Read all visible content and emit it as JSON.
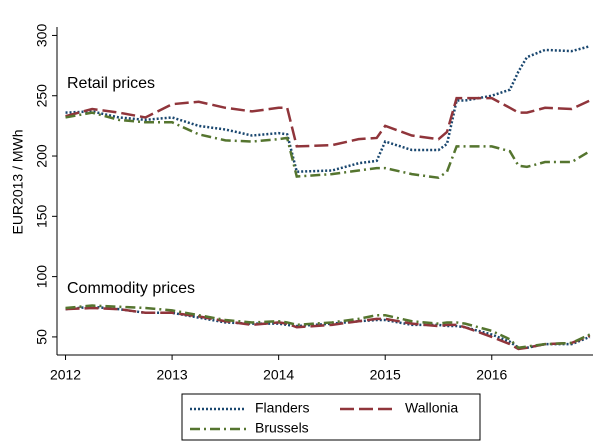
{
  "chart_data": {
    "type": "line",
    "ylabel": "EUR2013 / MWh",
    "annotations": [
      "Retail prices",
      "Commodity prices"
    ],
    "x": [
      2012,
      2012.25,
      2012.5,
      2012.75,
      2013,
      2013.25,
      2013.5,
      2013.75,
      2014.0,
      2014.08,
      2014.17,
      2014.5,
      2014.75,
      2014.92,
      2015.0,
      2015.25,
      2015.5,
      2015.58,
      2015.67,
      2015.75,
      2016,
      2016.17,
      2016.25,
      2016.33,
      2016.5,
      2016.75,
      2016.92
    ],
    "xlim": [
      2011.92,
      2016.95
    ],
    "xticks": [
      2012,
      2013,
      2014,
      2015,
      2016
    ],
    "ylim": [
      35,
      307
    ],
    "yticks": [
      50,
      100,
      150,
      200,
      250,
      300
    ],
    "grid": false,
    "series": [
      {
        "name": "Flanders",
        "color": "#1a476f",
        "dash": "2 2",
        "values": [
          236,
          237,
          232,
          230,
          232,
          225,
          222,
          217,
          219,
          218,
          187,
          188,
          194,
          196,
          212,
          205,
          205,
          210,
          246,
          246,
          250,
          255,
          270,
          282,
          288,
          287,
          291
        ],
        "commodity": [
          73,
          75,
          73,
          70,
          70,
          66,
          62,
          61,
          61,
          60,
          59,
          61,
          63,
          64,
          64,
          60,
          60,
          59,
          59,
          58,
          52,
          46,
          41,
          41,
          44,
          44,
          50
        ]
      },
      {
        "name": "Wallonia",
        "color": "#90353b",
        "dash": "14 5",
        "values": [
          233,
          239,
          236,
          232,
          243,
          245,
          240,
          237,
          240,
          240,
          208,
          209,
          214,
          215,
          225,
          217,
          214,
          220,
          248,
          248,
          248,
          240,
          236,
          236,
          240,
          239,
          246
        ],
        "commodity": [
          73,
          74,
          73,
          70,
          70,
          67,
          63,
          60,
          62,
          61,
          58,
          60,
          63,
          65,
          65,
          61,
          59,
          60,
          60,
          58,
          50,
          44,
          40,
          41,
          44,
          45,
          51
        ]
      },
      {
        "name": "Brussels",
        "color": "#55752f",
        "dash": "10 4 2 4",
        "values": [
          232,
          236,
          230,
          228,
          228,
          218,
          213,
          212,
          214,
          215,
          183,
          185,
          188,
          190,
          190,
          185,
          182,
          187,
          208,
          208,
          208,
          204,
          192,
          191,
          195,
          195,
          204
        ],
        "commodity": [
          74,
          76,
          75,
          74,
          72,
          68,
          64,
          62,
          63,
          62,
          60,
          62,
          65,
          68,
          68,
          63,
          61,
          62,
          62,
          61,
          55,
          48,
          41,
          42,
          44,
          45,
          52
        ]
      }
    ]
  }
}
